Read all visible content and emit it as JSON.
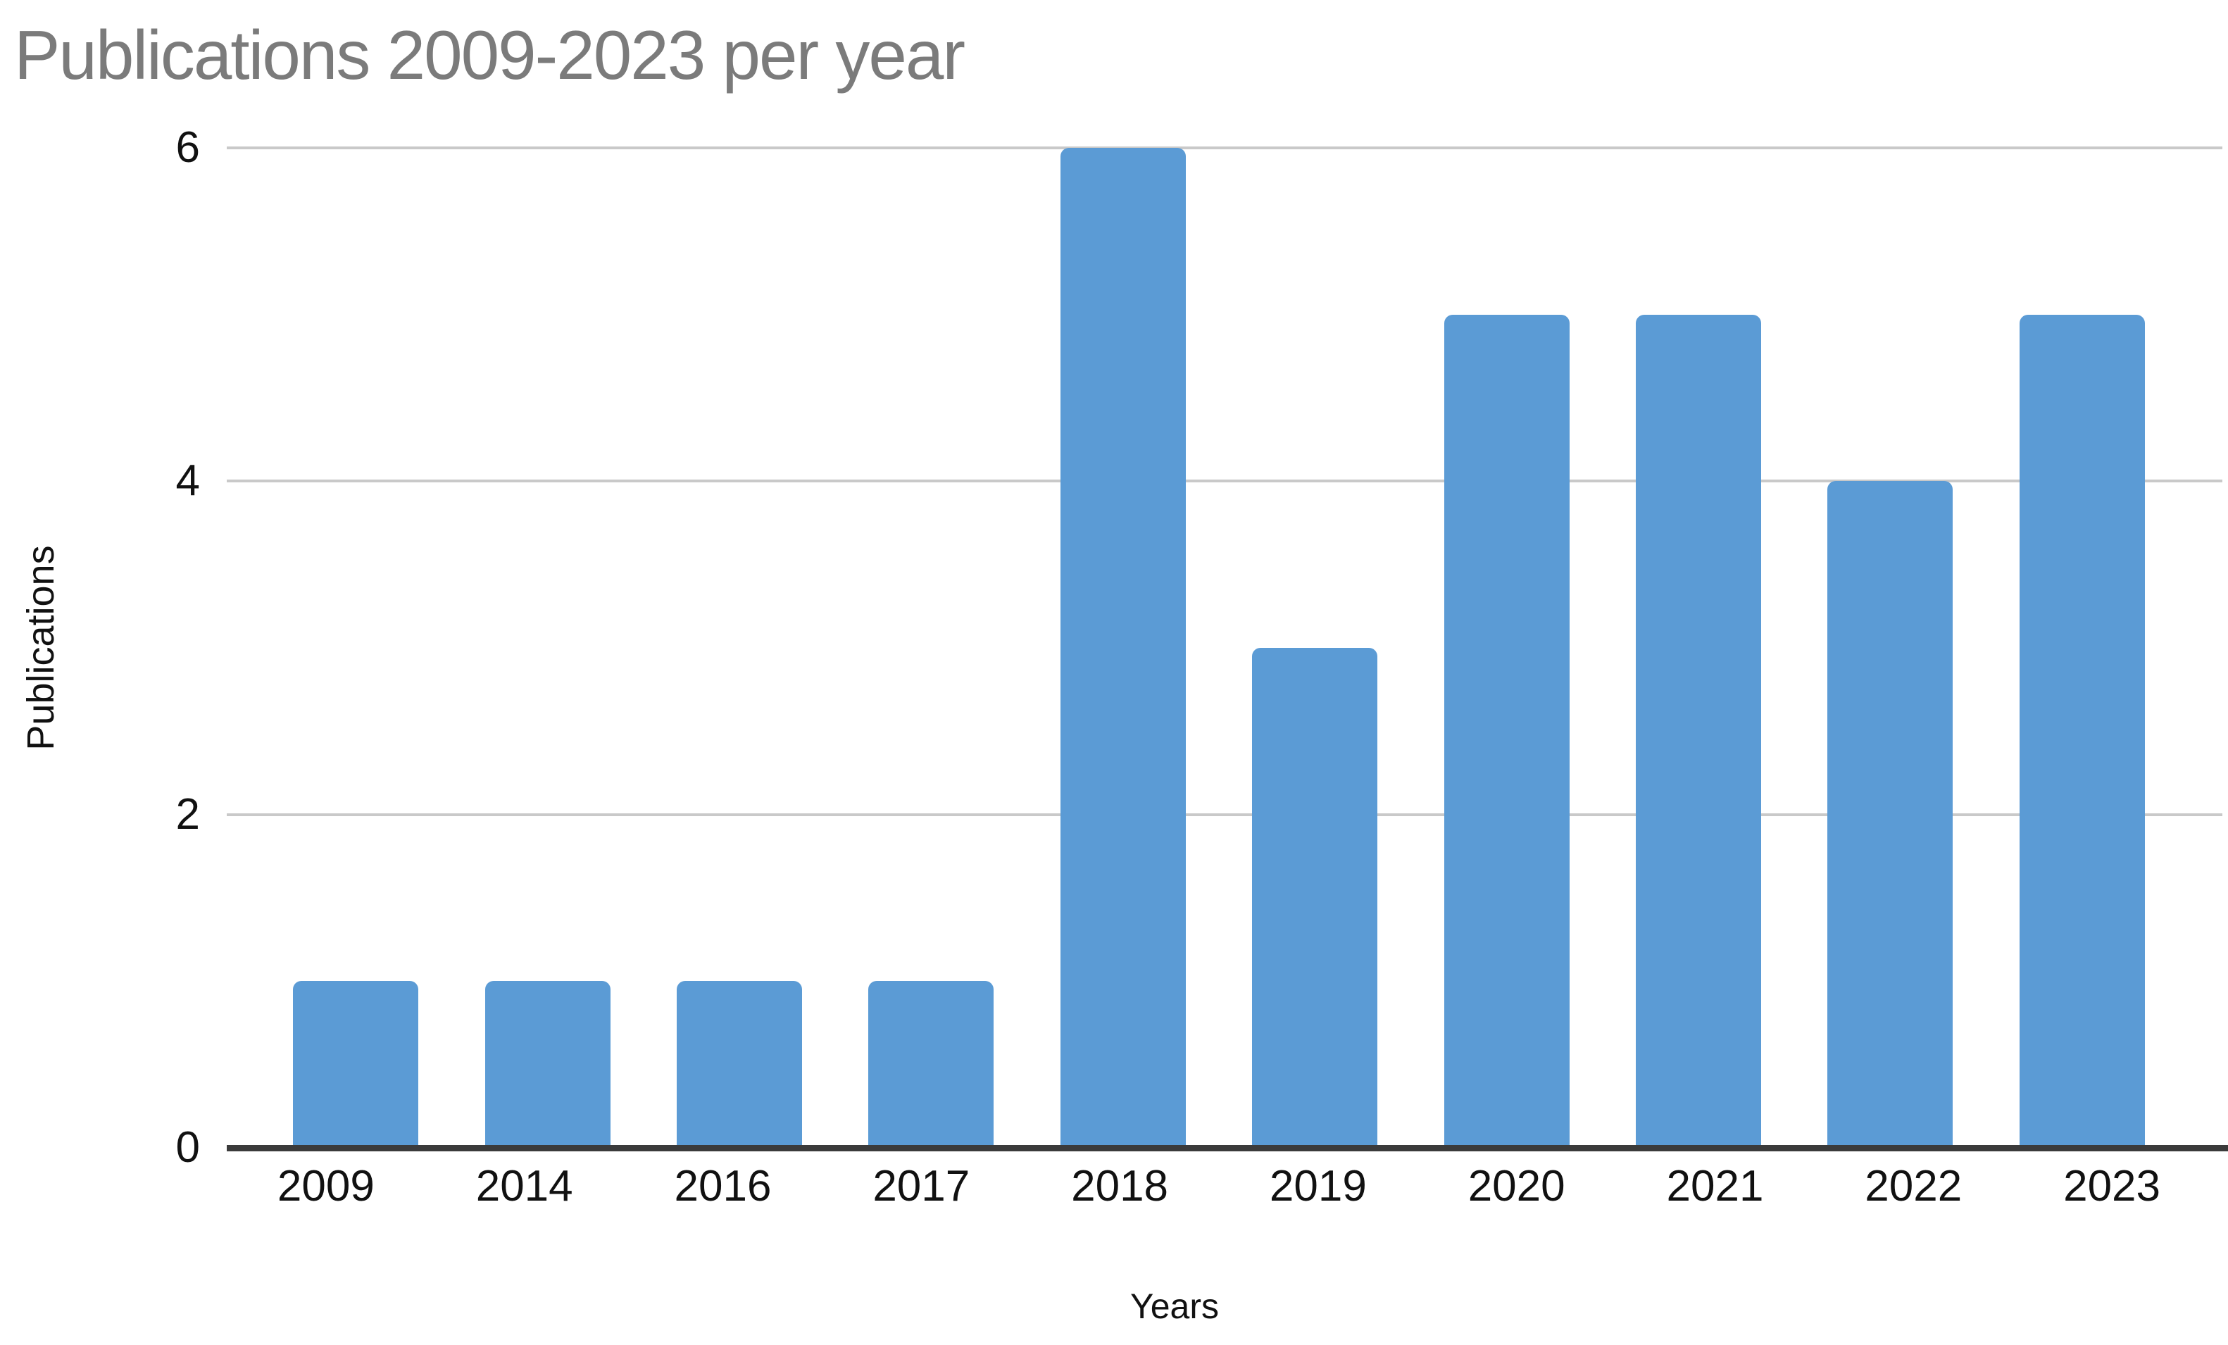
{
  "chart_data": {
    "type": "bar",
    "title": "Publications 2009-2023 per year",
    "xlabel": "Years",
    "ylabel": "Publications",
    "categories": [
      "2009",
      "2014",
      "2016",
      "2017",
      "2018",
      "2019",
      "2020",
      "2021",
      "2022",
      "2023"
    ],
    "values": [
      1,
      1,
      1,
      1,
      6,
      3,
      5,
      5,
      4,
      5
    ],
    "ylim": [
      0,
      6
    ],
    "yticks": [
      0,
      2,
      4,
      6
    ],
    "grid": "horizontal-only",
    "legend": "none",
    "bar_color": "#5B9BD5",
    "gridline_color": "#C9C9C9",
    "axis_line_color": "#3B3B3B",
    "title_color": "#7B7B7B",
    "tick_label_color": "#111111"
  }
}
